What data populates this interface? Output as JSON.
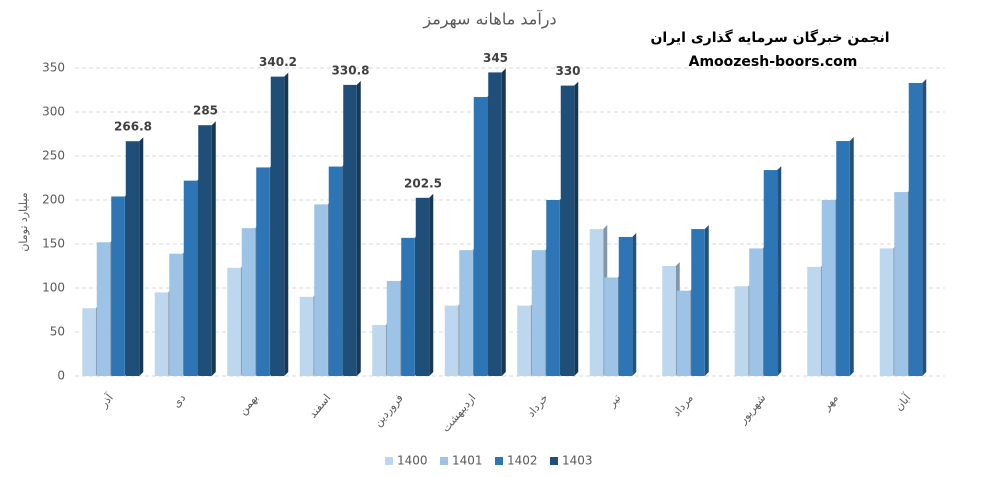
{
  "chart_data": {
    "type": "bar",
    "title": "درآمد ماهانه سهرمز",
    "y_label": "میلیارد تومان",
    "watermark": [
      "انجمن خبرگان سرمایه گذاری ایران",
      "Amoozesh-boors.com"
    ],
    "categories": [
      "آذر",
      "دی",
      "بهمن",
      "اسفند",
      "فروردین",
      "اردیبهشت",
      "خرداد",
      "تیر",
      "مرداد",
      "شهریور",
      "مهر",
      "آبان"
    ],
    "series": [
      {
        "name": "1400",
        "color": "#bdd7ee",
        "values": [
          77,
          95,
          123,
          90,
          58,
          80,
          80,
          167,
          125,
          102,
          124,
          145
        ]
      },
      {
        "name": "1401",
        "color": "#9dc3e6",
        "values": [
          152,
          139,
          168,
          195,
          108,
          143,
          143,
          112,
          97,
          145,
          200,
          209
        ]
      },
      {
        "name": "1402",
        "color": "#2e75b6",
        "values": [
          204,
          222,
          237,
          238,
          157,
          317,
          200,
          158,
          167,
          234,
          267,
          333
        ]
      },
      {
        "name": "1403",
        "color": "#1f4e79",
        "values": [
          266.8,
          285,
          340.2,
          330.8,
          202.5,
          345,
          330,
          null,
          null,
          null,
          null,
          null
        ],
        "data_labels": true
      }
    ],
    "ylim": [
      0,
      350
    ],
    "yticks": [
      0,
      50,
      100,
      150,
      200,
      250,
      300,
      350
    ],
    "grid": true,
    "legend": "bottom"
  }
}
